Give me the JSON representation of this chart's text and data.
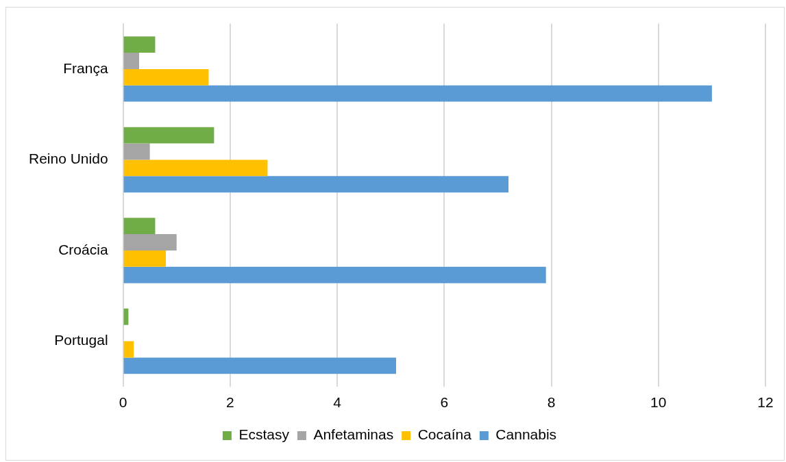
{
  "chart_data": {
    "type": "bar",
    "orientation": "horizontal",
    "categories": [
      "França",
      "Reino Unido",
      "Croácia",
      "Portugal"
    ],
    "series": [
      {
        "name": "Ecstasy",
        "color": "#70ad47",
        "values": [
          0.6,
          1.7,
          0.6,
          0.1
        ]
      },
      {
        "name": "Anfetaminas",
        "color": "#a5a5a5",
        "values": [
          0.3,
          0.5,
          1.0,
          0
        ]
      },
      {
        "name": "Cocaína",
        "color": "#ffc000",
        "values": [
          1.6,
          2.7,
          0.8,
          0.2
        ]
      },
      {
        "name": "Cannabis",
        "color": "#5b9bd5",
        "values": [
          11.0,
          7.2,
          7.9,
          5.1
        ]
      }
    ],
    "xlim": [
      0,
      12
    ],
    "xticks": [
      0,
      2,
      4,
      6,
      8,
      10,
      12
    ],
    "grid": "x",
    "legend": "bottom"
  }
}
